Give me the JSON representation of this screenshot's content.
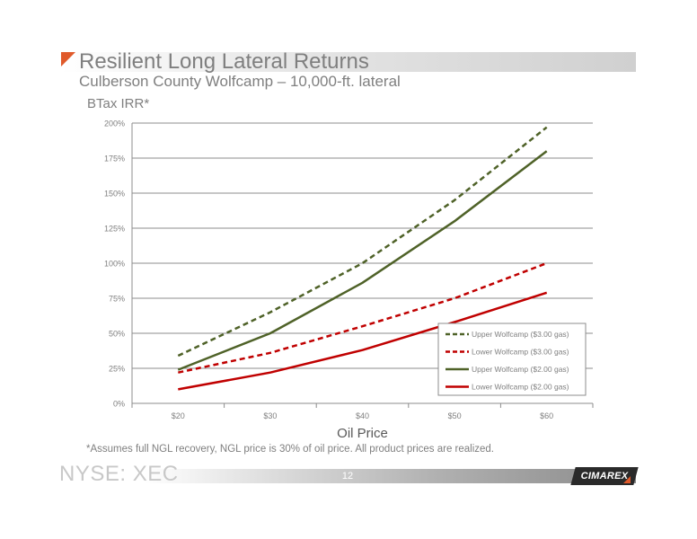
{
  "slide": {
    "title": "Resilient Long Lateral Returns",
    "subtitle": "Culberson County Wolfcamp – 10,000-ft. lateral",
    "footnote": "*Assumes full NGL recovery, NGL price is 30% of oil price. All product prices are realized.",
    "footer_left": "NYSE: XEC",
    "page_number": "12",
    "logo_text": "CIMAREX",
    "accent_color": "#e05a2b"
  },
  "chart_data": {
    "type": "line",
    "title": "",
    "ylabel": "BTax IRR*",
    "xlabel": "Oil Price",
    "categories": [
      "$20",
      "$30",
      "$40",
      "$50",
      "$60"
    ],
    "x": [
      20,
      30,
      40,
      50,
      60
    ],
    "xlim": [
      15,
      65
    ],
    "ylim": [
      0,
      200
    ],
    "yticks": [
      0,
      25,
      50,
      75,
      100,
      125,
      150,
      175,
      200
    ],
    "ytick_labels": [
      "0%",
      "25%",
      "50%",
      "75%",
      "100%",
      "125%",
      "150%",
      "175%",
      "200%"
    ],
    "grid": "horizontal",
    "legend_position": "bottom-right",
    "series": [
      {
        "name": "Upper Wolfcamp ($3.00 gas)",
        "values": [
          34,
          65,
          100,
          145,
          197
        ],
        "color": "#4f6228",
        "dash": "dashed"
      },
      {
        "name": "Lower Wolfcamp ($3.00 gas)",
        "values": [
          22,
          36,
          55,
          75,
          100
        ],
        "color": "#c00000",
        "dash": "dashed"
      },
      {
        "name": "Upper Wolfcamp ($2.00 gas)",
        "values": [
          24,
          50,
          86,
          130,
          180
        ],
        "color": "#4f6228",
        "dash": "solid"
      },
      {
        "name": "Lower Wolfcamp ($2.00 gas)",
        "values": [
          10,
          22,
          38,
          58,
          79
        ],
        "color": "#c00000",
        "dash": "solid"
      }
    ]
  }
}
